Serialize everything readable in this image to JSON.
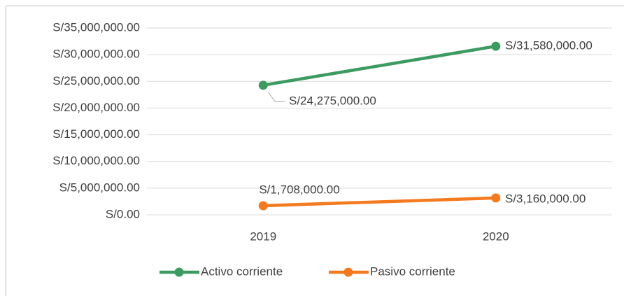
{
  "chart_data": {
    "type": "line",
    "categories": [
      "2019",
      "2020"
    ],
    "series": [
      {
        "name": "Activo corriente",
        "color": "#3d9b62",
        "values": [
          24275000,
          31580000
        ],
        "value_labels": [
          "S/24,275,000.00",
          "S/31,580,000.00"
        ]
      },
      {
        "name": "Pasivo corriente",
        "color": "#f47a20",
        "values": [
          1708000,
          3160000
        ],
        "value_labels": [
          "S/1,708,000.00",
          "S/3,160,000.00"
        ]
      }
    ],
    "ylim": [
      0,
      35000000
    ],
    "yticks": [
      {
        "value": 0,
        "label": "S/0.00"
      },
      {
        "value": 5000000,
        "label": "S/5,000,000.00"
      },
      {
        "value": 10000000,
        "label": "S/10,000,000.00"
      },
      {
        "value": 15000000,
        "label": "S/15,000,000.00"
      },
      {
        "value": 20000000,
        "label": "S/20,000,000.00"
      },
      {
        "value": 25000000,
        "label": "S/25,000,000.00"
      },
      {
        "value": 30000000,
        "label": "S/30,000,000.00"
      },
      {
        "value": 35000000,
        "label": "S/35,000,000.00"
      }
    ],
    "grid": true,
    "legend": "bottom"
  }
}
